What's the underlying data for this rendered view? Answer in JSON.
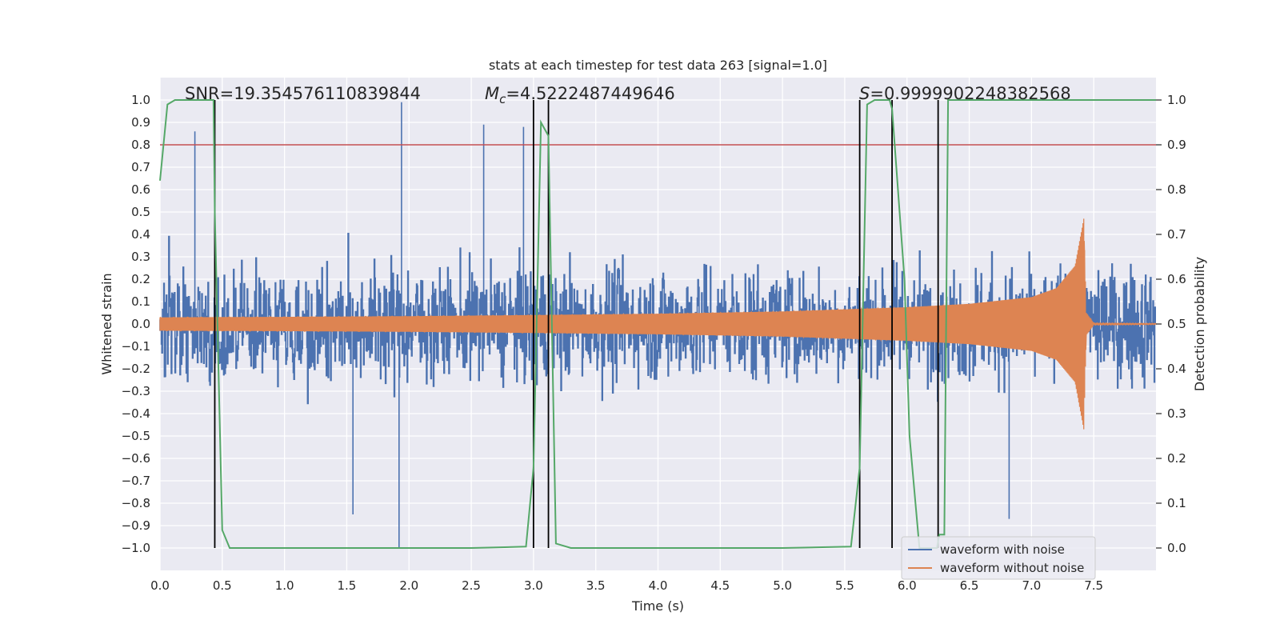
{
  "chart_data": {
    "type": "line",
    "title": "stats at each timestep for test data 263 [signal=1.0]",
    "xlabel": "Time (s)",
    "ylabel": "Whitened strain",
    "y2label": "Detection probability",
    "xlim": [
      0.0,
      8.0
    ],
    "ylim": [
      -1.1,
      1.1
    ],
    "y2lim": [
      -0.05,
      1.05
    ],
    "x_ticks": [
      0.0,
      0.5,
      1.0,
      1.5,
      2.0,
      2.5,
      3.0,
      3.5,
      4.0,
      4.5,
      5.0,
      5.5,
      6.0,
      6.5,
      7.0,
      7.5
    ],
    "x_tick_labels": [
      "0.0",
      "0.5",
      "1.0",
      "1.5",
      "2.0",
      "2.5",
      "3.0",
      "3.5",
      "4.0",
      "4.5",
      "5.0",
      "5.5",
      "6.0",
      "6.5",
      "7.0",
      "7.5"
    ],
    "y_ticks": [
      1.0,
      0.9,
      0.8,
      0.7,
      0.6,
      0.5,
      0.4,
      0.3,
      0.2,
      0.1,
      0.0,
      -0.1,
      -0.2,
      -0.3,
      -0.4,
      -0.5,
      -0.6,
      -0.7,
      -0.8,
      -0.9,
      -1.0
    ],
    "y_tick_labels": [
      "1.0",
      "0.9",
      "0.8",
      "0.7",
      "0.6",
      "0.5",
      "0.4",
      "0.3",
      "0.2",
      "0.1",
      "0.0",
      "−0.1",
      "−0.2",
      "−0.3",
      "−0.4",
      "−0.5",
      "−0.6",
      "−0.7",
      "−0.8",
      "−0.9",
      "−1.0"
    ],
    "y2_ticks": [
      1.0,
      0.9,
      0.8,
      0.7,
      0.6,
      0.5,
      0.4,
      0.3,
      0.2,
      0.1,
      0.0
    ],
    "y2_tick_labels": [
      "1.0",
      "0.9",
      "0.8",
      "0.7",
      "0.6",
      "0.5",
      "0.4",
      "0.3",
      "0.2",
      "0.1",
      "0.0"
    ],
    "annotations": {
      "snr": "SNR=19.354576110839844",
      "mc_symbol": "M",
      "mc_subscript": "c",
      "mc_value": "=4.5222487449646",
      "s_symbol": "S",
      "s_value": "=0.9999902248382568"
    },
    "threshold_line": {
      "y2": 0.9,
      "color": "#c44e52"
    },
    "vertical_markers": [
      0.44,
      3.0,
      3.12,
      5.62,
      5.88,
      6.25
    ],
    "noisy_waveform": {
      "name": "waveform with noise",
      "color": "#4c72b0",
      "x_range": [
        0.0,
        8.0
      ],
      "envelope_typical": 0.4,
      "notable_peaks": [
        {
          "x": 0.28,
          "y": 0.86
        },
        {
          "x": 1.94,
          "y": 0.99
        },
        {
          "x": 2.6,
          "y": 0.89
        },
        {
          "x": 2.92,
          "y": 0.88
        },
        {
          "x": 1.92,
          "y": -1.0
        },
        {
          "x": 1.55,
          "y": -0.85
        },
        {
          "x": 6.82,
          "y": -0.87
        }
      ]
    },
    "clean_waveform": {
      "name": "waveform without noise",
      "color": "#dd8452",
      "x": [
        0.0,
        1.0,
        2.0,
        3.0,
        4.0,
        5.0,
        6.0,
        6.5,
        7.0,
        7.2,
        7.35,
        7.42,
        7.44,
        7.5,
        8.0
      ],
      "amplitude": [
        0.03,
        0.032,
        0.035,
        0.04,
        0.046,
        0.056,
        0.075,
        0.09,
        0.12,
        0.16,
        0.26,
        0.47,
        0.05,
        0.005,
        0.003
      ]
    },
    "detection_probability": {
      "name": "Detection probability",
      "color": "#55a868",
      "x": [
        0.0,
        0.06,
        0.12,
        0.2,
        0.43,
        0.44,
        0.5,
        0.56,
        1.0,
        2.5,
        2.94,
        3.0,
        3.06,
        3.12,
        3.18,
        3.3,
        4.0,
        5.0,
        5.55,
        5.62,
        5.68,
        5.74,
        5.86,
        5.88,
        5.98,
        6.02,
        6.1,
        6.18,
        6.24,
        6.26,
        6.3,
        6.33,
        7.0,
        8.0
      ],
      "y": [
        0.82,
        0.99,
        1.0,
        1.0,
        1.0,
        0.75,
        0.04,
        0.0,
        0.0,
        0.0,
        0.003,
        0.18,
        0.95,
        0.92,
        0.01,
        0.0,
        0.0,
        0.0,
        0.003,
        0.18,
        0.99,
        1.0,
        1.0,
        0.98,
        0.6,
        0.25,
        0.0,
        0.0,
        0.0,
        0.03,
        0.03,
        1.0,
        1.0,
        1.0
      ]
    },
    "legend": {
      "placement": "bottom-right",
      "entries": [
        {
          "label": "waveform with noise",
          "color": "#4c72b0"
        },
        {
          "label": "waveform without noise",
          "color": "#dd8452"
        }
      ]
    },
    "grid": true,
    "background": "#eaeaf2"
  }
}
